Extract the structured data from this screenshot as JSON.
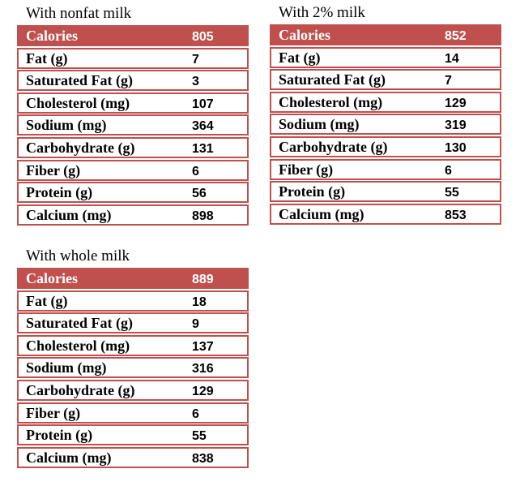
{
  "tables": [
    {
      "title": "With nonfat milk",
      "header": [
        "Calories",
        805
      ],
      "rows": [
        [
          "Fat (g)",
          7
        ],
        [
          "Saturated Fat (g)",
          3
        ],
        [
          "Cholesterol (mg)",
          107
        ],
        [
          "Sodium (mg)",
          364
        ],
        [
          "Carbohydrate (g)",
          131
        ],
        [
          "Fiber (g)",
          6
        ],
        [
          "Protein (g)",
          56
        ],
        [
          "Calcium (mg)",
          898
        ]
      ]
    },
    {
      "title": "With 2% milk",
      "header": [
        "Calories",
        852
      ],
      "rows": [
        [
          "Fat (g)",
          14
        ],
        [
          "Saturated Fat (g)",
          7
        ],
        [
          "Cholesterol (mg)",
          129
        ],
        [
          "Sodium (mg)",
          319
        ],
        [
          "Carbohydrate (g)",
          130
        ],
        [
          "Fiber (g)",
          6
        ],
        [
          "Protein (g)",
          55
        ],
        [
          "Calcium (mg)",
          853
        ]
      ]
    },
    {
      "title": "With whole milk",
      "header": [
        "Calories",
        889
      ],
      "rows": [
        [
          "Fat (g)",
          18
        ],
        [
          "Saturated Fat (g)",
          9
        ],
        [
          "Cholesterol (mg)",
          137
        ],
        [
          "Sodium (mg)",
          316
        ],
        [
          "Carbohydrate (g)",
          129
        ],
        [
          "Fiber (g)",
          6
        ],
        [
          "Protein (g)",
          55
        ],
        [
          "Calcium (mg)",
          838
        ]
      ]
    }
  ]
}
